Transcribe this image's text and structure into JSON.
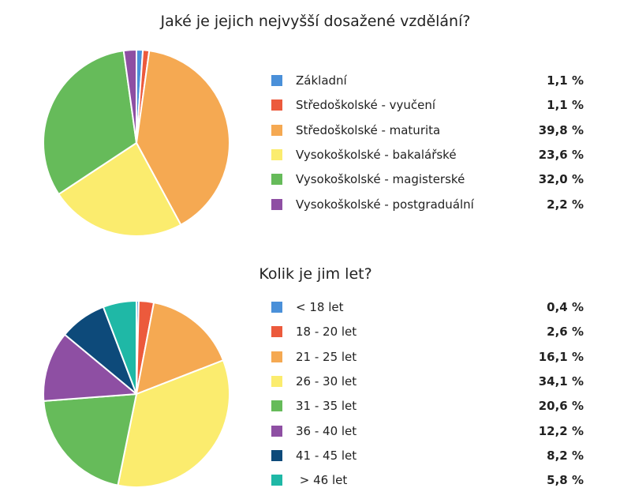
{
  "chart_data": [
    {
      "type": "pie",
      "title": "Jaké je jejich nejvyšší dosažené vzdělání?",
      "categories": [
        "Základní",
        "Středoškolské - vyučení",
        "Středoškolské - maturita",
        "Vysokoškolské - bakalářské",
        "Vysokoškolské - magisterské",
        "Vysokoškolské - postgraduální"
      ],
      "values": [
        1.1,
        1.1,
        39.8,
        23.6,
        32.0,
        2.2
      ],
      "value_labels": [
        "1,1 %",
        "1,1 %",
        "39,8 %",
        "23,6 %",
        "32,0 %",
        "2,2 %"
      ],
      "colors": [
        "#4a90d9",
        "#ec5a3c",
        "#f5a952",
        "#fbec6e",
        "#66bb5a",
        "#8e4fa3"
      ],
      "legend": "right"
    },
    {
      "type": "pie",
      "title": "Kolik je jim let?",
      "categories": [
        "< 18 let",
        "18 - 20 let",
        "21 - 25 let",
        "26 - 30 let",
        "31 - 35 let",
        "36 - 40 let",
        "41 - 45 let",
        " > 46 let"
      ],
      "values": [
        0.4,
        2.6,
        16.1,
        34.1,
        20.6,
        12.2,
        8.2,
        5.8
      ],
      "value_labels": [
        "0,4 %",
        "2,6 %",
        "16,1 %",
        "34,1 %",
        "20,6 %",
        "12,2 %",
        "8,2 %",
        "5,8 %"
      ],
      "colors": [
        "#4a90d9",
        "#ec5a3c",
        "#f5a952",
        "#fbec6e",
        "#66bb5a",
        "#8e4fa3",
        "#0d4a7a",
        "#1fb8a6"
      ],
      "legend": "right"
    }
  ]
}
